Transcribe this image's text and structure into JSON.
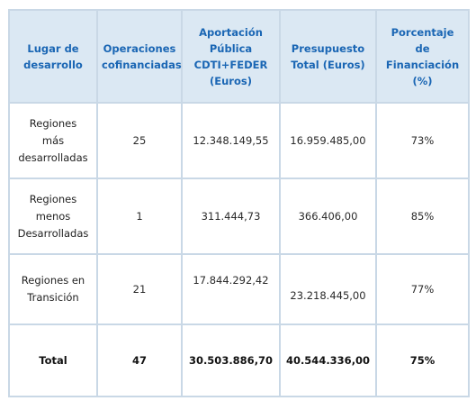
{
  "table": {
    "headers": [
      "Lugar de\ndesarrollo",
      "Operaciones\ncofinanciadas",
      "Aportación\nPública\nCDTI+FEDER\n(Euros)",
      "Presupuesto\nTotal (Euros)",
      "Porcentaje\nde\nFinanciación\n(%)"
    ],
    "rows": [
      [
        "Regiones\nmás\ndesarrolladas",
        "25",
        "12.348.149,55",
        "16.959.485,00",
        "73%"
      ],
      [
        "Regiones\nmenos\nDesarrolladas",
        "1",
        "311.444,73",
        "366.406,00",
        "85%"
      ],
      [
        "Regiones en\nTransición",
        "21",
        "17.844.292,42",
        "23.218.445,00",
        "77%"
      ],
      [
        "Total",
        "47",
        "30.503.886,70",
        "40.544.336,00",
        "75%"
      ]
    ]
  },
  "colors": {
    "header_bg": "#dbe8f3",
    "header_text": "#1a66b4",
    "border": "#c9d8e6"
  }
}
